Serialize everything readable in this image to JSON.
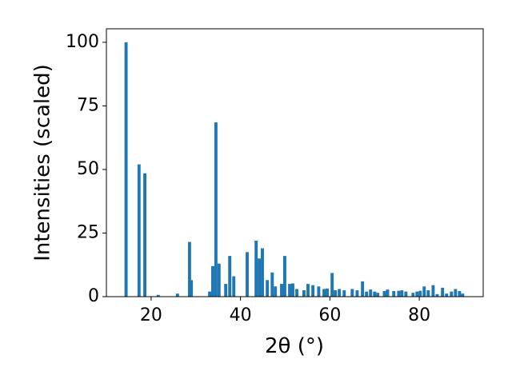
{
  "chart_data": {
    "type": "bar",
    "xlabel": "2θ (°)",
    "ylabel": "Intensities (scaled)",
    "color": "#1f77b4",
    "x": [
      14.4,
      17.3,
      18.6,
      21.6,
      25.9,
      28.6,
      29.0,
      33.1,
      33.8,
      34.5,
      35.2,
      36.7,
      37.6,
      38.5,
      41.5,
      43.5,
      44.2,
      44.9,
      46.0,
      47.1,
      47.8,
      49.2,
      49.9,
      51.0,
      51.7,
      52.6,
      54.2,
      55.1,
      56.2,
      57.5,
      58.7,
      59.4,
      60.5,
      61.2,
      62.1,
      63.2,
      65.0,
      66.1,
      67.3,
      68.2,
      69.1,
      70.0,
      70.7,
      72.2,
      72.9,
      74.3,
      75.4,
      76.1,
      77.0,
      78.6,
      79.5,
      80.2,
      81.1,
      82.0,
      83.1,
      84.0,
      85.2,
      86.1,
      87.2,
      88.1,
      89.0,
      89.7
    ],
    "values": [
      100,
      52,
      48.5,
      0.7,
      1.2,
      21.5,
      6.5,
      2,
      12,
      68.5,
      13,
      5,
      16,
      8,
      17.5,
      22,
      15,
      19,
      6.5,
      9.5,
      4,
      5,
      16,
      5,
      5.2,
      3,
      2.5,
      5,
      4.5,
      4,
      3,
      3.2,
      9.3,
      2.5,
      3,
      2.5,
      3,
      2.5,
      6,
      2,
      2.8,
      2,
      1.5,
      2.2,
      2.8,
      2.2,
      2.3,
      2.5,
      2,
      1.5,
      2,
      2.3,
      4,
      2.5,
      4.5,
      1,
      3.5,
      1.2,
      2,
      3,
      2.2,
      1.2
    ],
    "xlim": [
      10,
      94.3
    ],
    "ylim": [
      0,
      105.3
    ],
    "xticks": [
      20,
      40,
      60,
      80
    ],
    "yticks": [
      0,
      25,
      50,
      75,
      100
    ]
  }
}
